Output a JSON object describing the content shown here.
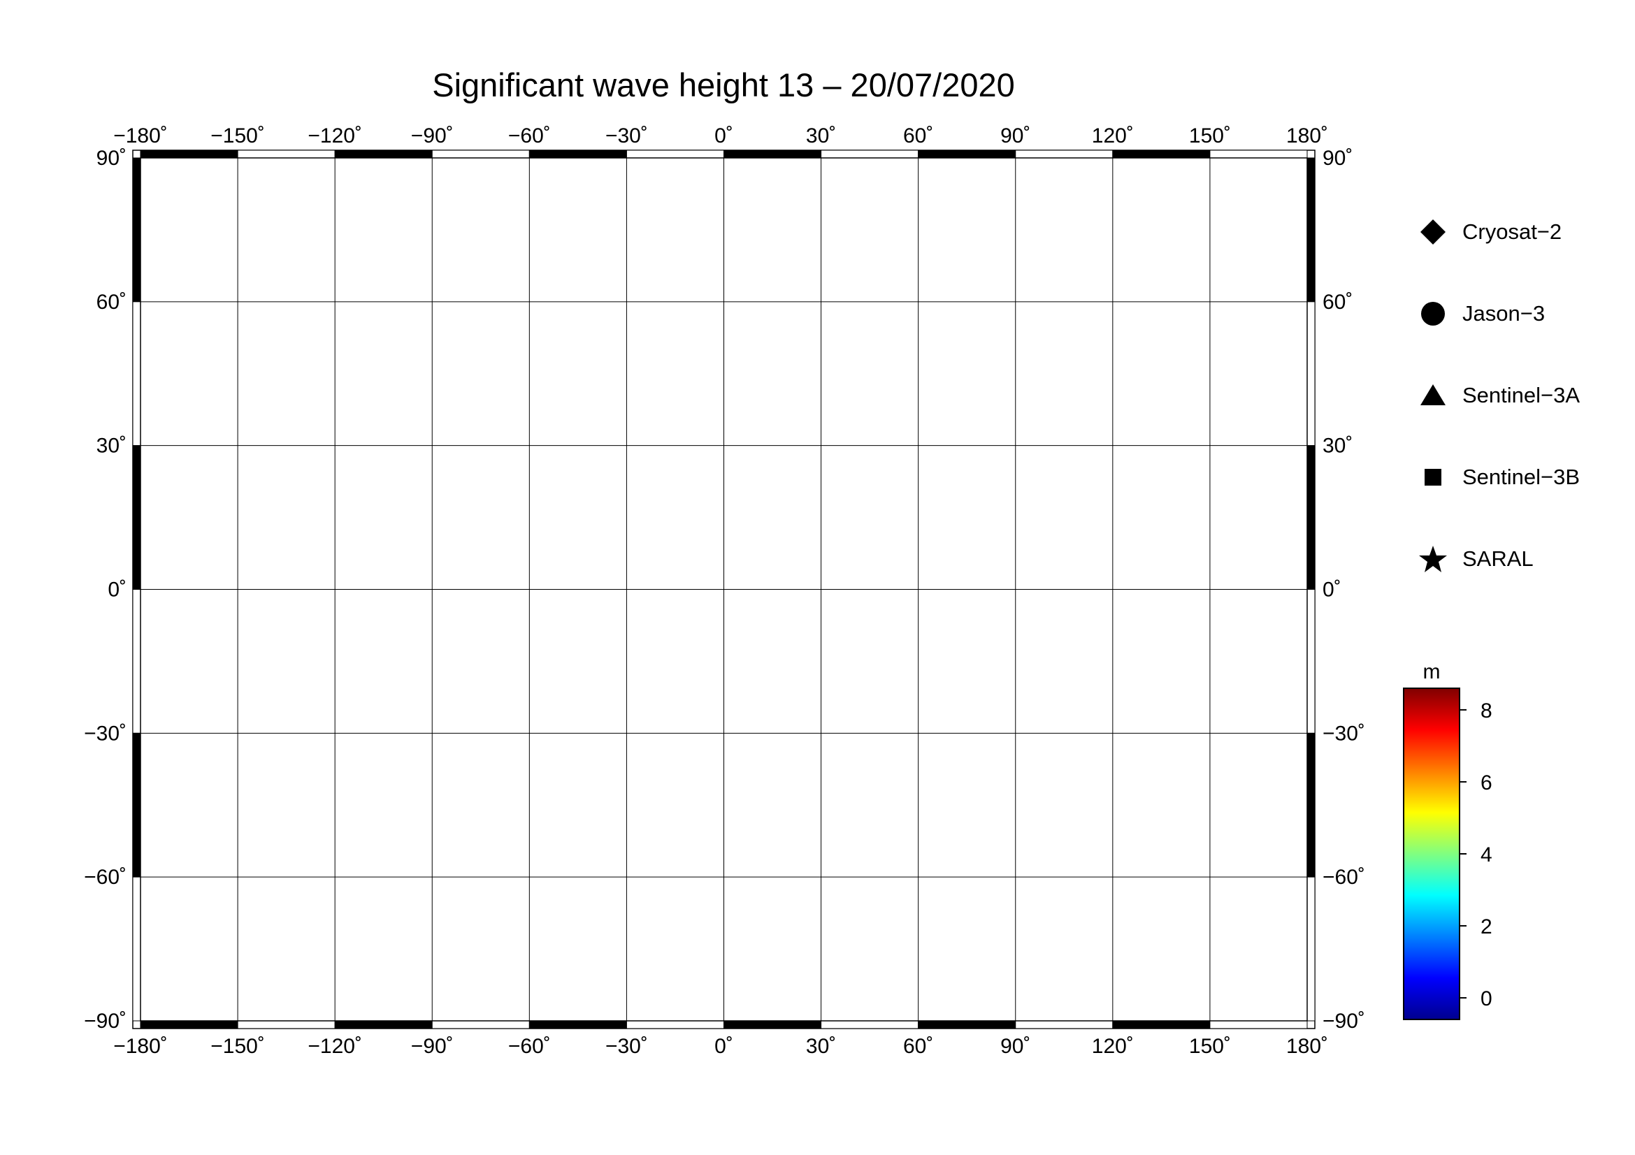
{
  "title": "Significant wave height 13 – 20/07/2020",
  "axes": {
    "x_ticks": [
      "−180˚",
      "−150˚",
      "−120˚",
      "−90˚",
      "−60˚",
      "−30˚",
      "0˚",
      "30˚",
      "60˚",
      "90˚",
      "120˚",
      "150˚",
      "180˚"
    ],
    "y_ticks": [
      "90˚",
      "60˚",
      "30˚",
      "0˚",
      "−30˚",
      "−60˚",
      "−90˚"
    ]
  },
  "legend": [
    {
      "label": "Cryosat−2",
      "marker": "diamond"
    },
    {
      "label": "Jason−3",
      "marker": "circle"
    },
    {
      "label": "Sentinel−3A",
      "marker": "triangle"
    },
    {
      "label": "Sentinel−3B",
      "marker": "square"
    },
    {
      "label": "SARAL",
      "marker": "star"
    }
  ],
  "colorbar": {
    "unit": "m",
    "range": [
      -0.6,
      8.6
    ],
    "ticks": [
      "0",
      "2",
      "4",
      "6",
      "8"
    ],
    "colors": [
      "#00008f",
      "#0000ff",
      "#0080ff",
      "#00ffff",
      "#80ff80",
      "#ffff00",
      "#ff8000",
      "#ff0000",
      "#800000"
    ]
  },
  "colors": {
    "land": "#c0c0c0",
    "ice": "#ffffff",
    "calm_sea": "#1a3ad8",
    "grid": "#000000"
  }
}
